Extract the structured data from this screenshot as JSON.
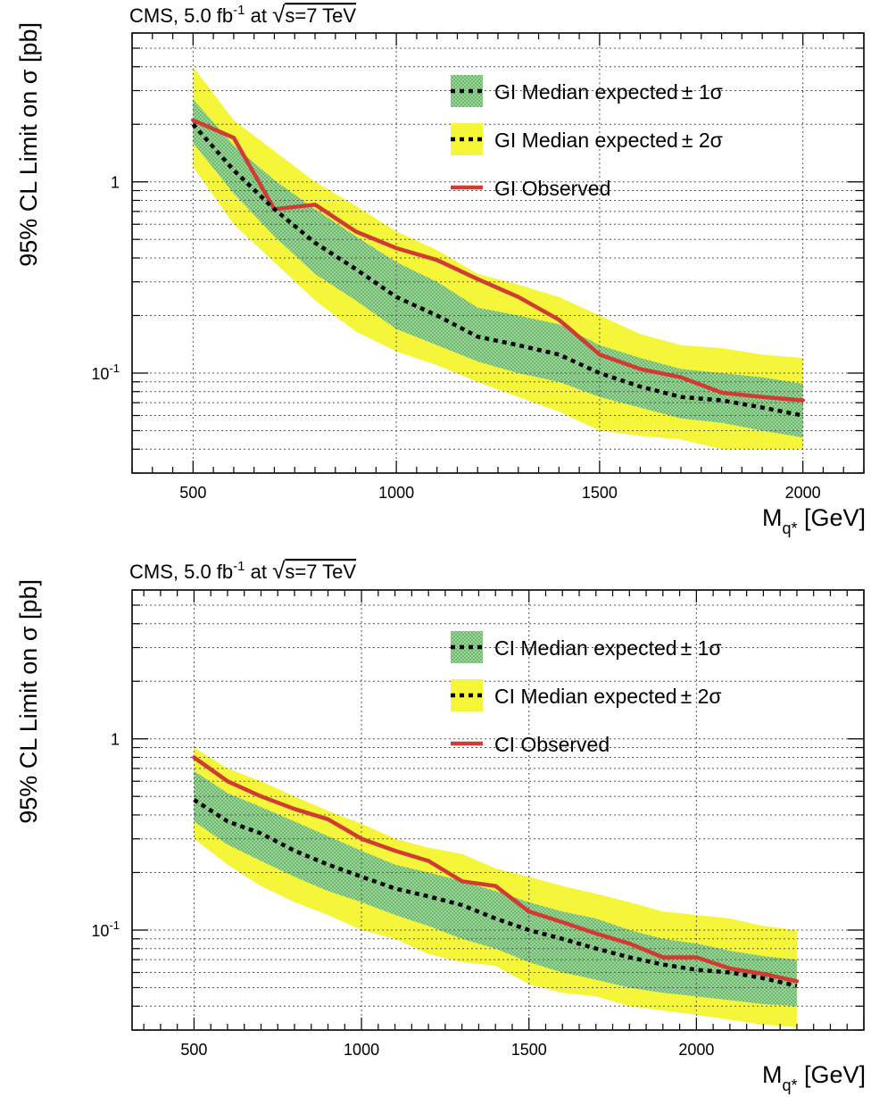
{
  "colors": {
    "band_1sigma": "#8fca8f",
    "band_2sigma": "#f5f53a",
    "expected_line": "#000000",
    "observed_line": "#d03b33",
    "grid": "#555555"
  },
  "chart_data": [
    {
      "type": "line",
      "title_prefix": "CMS, 5.0 fb",
      "title_sup": "-1",
      "title_mid": " at ",
      "title_root": "√",
      "title_suffix": "s=7 TeV",
      "xlabel_main": "M",
      "xlabel_sub": "q*",
      "xlabel_unit": " [GeV]",
      "ylabel": "95% CL Limit on σ [pb]",
      "xlim": [
        350,
        2150
      ],
      "ylim": [
        0.03,
        6
      ],
      "yscale": "log",
      "grid": true,
      "legend_position": "top-right",
      "xticks": [
        500,
        1000,
        1500,
        2000
      ],
      "xtick_labels": [
        "500",
        "1000",
        "1500",
        "2000"
      ],
      "ytick_labels": [
        {
          "value": 1,
          "base": "1",
          "exp": ""
        },
        {
          "value": 0.1,
          "base": "10",
          "exp": "-1"
        }
      ],
      "legend": [
        {
          "key": "band1",
          "label": "GI Median expected",
          "pm": "± 1σ"
        },
        {
          "key": "band2",
          "label": "GI Median expected",
          "pm": "± 2σ"
        },
        {
          "key": "observed",
          "label": "GI Observed",
          "pm": ""
        }
      ],
      "x": [
        500,
        600,
        700,
        800,
        900,
        1000,
        1100,
        1200,
        1300,
        1400,
        1500,
        1600,
        1700,
        1800,
        1900,
        2000
      ],
      "series": [
        {
          "key": "expected",
          "name": "GI Median expected",
          "values": [
            2.0,
            1.15,
            0.72,
            0.48,
            0.35,
            0.25,
            0.2,
            0.155,
            0.14,
            0.125,
            0.1,
            0.085,
            0.075,
            0.072,
            0.066,
            0.06
          ]
        },
        {
          "key": "observed",
          "name": "GI Observed",
          "values": [
            2.1,
            1.7,
            0.72,
            0.76,
            0.55,
            0.45,
            0.39,
            0.31,
            0.25,
            0.19,
            0.125,
            0.105,
            0.095,
            0.079,
            0.075,
            0.072
          ]
        },
        {
          "key": "band1_low",
          "values": [
            1.6,
            0.87,
            0.52,
            0.33,
            0.24,
            0.17,
            0.14,
            0.115,
            0.1,
            0.09,
            0.075,
            0.066,
            0.058,
            0.055,
            0.05,
            0.046
          ]
        },
        {
          "key": "band1_high",
          "values": [
            2.7,
            1.55,
            1.02,
            0.72,
            0.52,
            0.38,
            0.3,
            0.22,
            0.2,
            0.18,
            0.14,
            0.12,
            0.105,
            0.1,
            0.095,
            0.088
          ]
        },
        {
          "key": "band2_low",
          "values": [
            1.2,
            0.6,
            0.38,
            0.24,
            0.165,
            0.13,
            0.11,
            0.09,
            0.075,
            0.063,
            0.05,
            0.047,
            0.045,
            0.04,
            0.04,
            0.04
          ]
        },
        {
          "key": "band2_high",
          "values": [
            4.0,
            2.1,
            1.45,
            1.0,
            0.75,
            0.55,
            0.44,
            0.33,
            0.29,
            0.25,
            0.2,
            0.16,
            0.14,
            0.135,
            0.125,
            0.12
          ]
        }
      ]
    },
    {
      "type": "line",
      "title_prefix": "CMS, 5.0 fb",
      "title_sup": "-1",
      "title_mid": " at ",
      "title_root": "√",
      "title_suffix": "s=7 TeV",
      "xlabel_main": "M",
      "xlabel_sub": "q*",
      "xlabel_unit": " [GeV]",
      "ylabel": "95% CL Limit on σ [pb]",
      "xlim": [
        315,
        2500
      ],
      "ylim": [
        0.03,
        6
      ],
      "yscale": "log",
      "grid": true,
      "legend_position": "top-right",
      "xticks": [
        500,
        1000,
        1500,
        2000
      ],
      "xtick_labels": [
        "500",
        "1000",
        "1500",
        "2000"
      ],
      "ytick_labels": [
        {
          "value": 1,
          "base": "1",
          "exp": ""
        },
        {
          "value": 0.1,
          "base": "10",
          "exp": "-1"
        }
      ],
      "legend": [
        {
          "key": "band1",
          "label": "CI Median expected",
          "pm": "± 1σ"
        },
        {
          "key": "band2",
          "label": "CI Median expected",
          "pm": "± 2σ"
        },
        {
          "key": "observed",
          "label": "CI Observed",
          "pm": ""
        }
      ],
      "x": [
        500,
        600,
        700,
        800,
        900,
        1000,
        1100,
        1200,
        1300,
        1400,
        1500,
        1600,
        1700,
        1800,
        1900,
        2000,
        2100,
        2200,
        2300
      ],
      "series": [
        {
          "key": "expected",
          "name": "CI Median expected",
          "values": [
            0.48,
            0.37,
            0.32,
            0.26,
            0.22,
            0.19,
            0.165,
            0.15,
            0.135,
            0.115,
            0.1,
            0.09,
            0.08,
            0.072,
            0.066,
            0.062,
            0.06,
            0.056,
            0.051
          ]
        },
        {
          "key": "observed",
          "name": "CI Observed",
          "values": [
            0.8,
            0.6,
            0.5,
            0.43,
            0.38,
            0.3,
            0.26,
            0.23,
            0.18,
            0.17,
            0.125,
            0.11,
            0.096,
            0.085,
            0.072,
            0.072,
            0.063,
            0.059,
            0.054
          ]
        },
        {
          "key": "band1_low",
          "values": [
            0.37,
            0.28,
            0.23,
            0.19,
            0.16,
            0.14,
            0.12,
            0.105,
            0.09,
            0.08,
            0.068,
            0.06,
            0.055,
            0.05,
            0.047,
            0.045,
            0.043,
            0.041,
            0.04
          ]
        },
        {
          "key": "band1_high",
          "values": [
            0.68,
            0.52,
            0.44,
            0.37,
            0.31,
            0.26,
            0.22,
            0.2,
            0.18,
            0.16,
            0.14,
            0.125,
            0.115,
            0.1,
            0.09,
            0.085,
            0.078,
            0.073,
            0.07
          ]
        },
        {
          "key": "band2_low",
          "values": [
            0.3,
            0.22,
            0.17,
            0.14,
            0.12,
            0.1,
            0.09,
            0.075,
            0.068,
            0.065,
            0.052,
            0.047,
            0.045,
            0.04,
            0.038,
            0.036,
            0.034,
            0.032,
            0.031
          ]
        },
        {
          "key": "band2_high",
          "values": [
            0.9,
            0.7,
            0.6,
            0.5,
            0.42,
            0.36,
            0.3,
            0.27,
            0.25,
            0.21,
            0.19,
            0.17,
            0.155,
            0.14,
            0.125,
            0.12,
            0.115,
            0.105,
            0.1
          ]
        }
      ]
    }
  ]
}
